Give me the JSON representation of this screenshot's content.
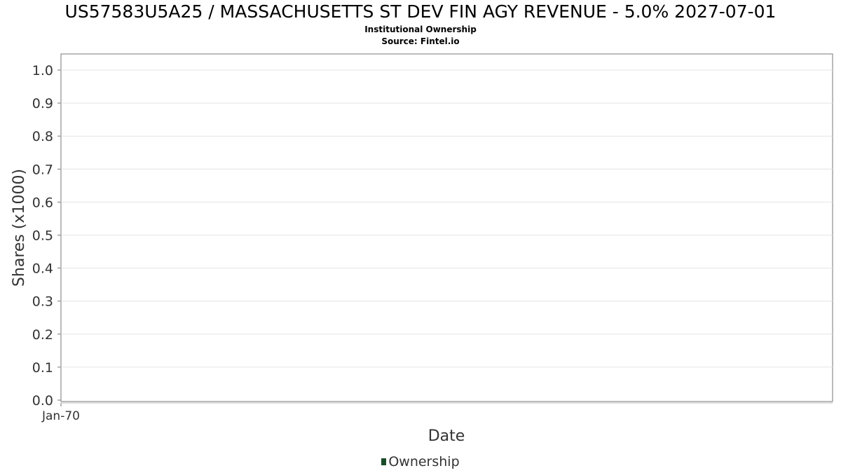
{
  "chart_data": {
    "type": "line",
    "title": "US57583U5A25 / MASSACHUSETTS ST DEV FIN AGY REVENUE - 5.0% 2027-07-01",
    "subtitle": "Institutional Ownership",
    "source": "Source: Fintel.io",
    "xlabel": "Date",
    "ylabel": "Shares (x1000)",
    "ylim": [
      0,
      1.0
    ],
    "yticks": [
      "0.0",
      "0.1",
      "0.2",
      "0.3",
      "0.4",
      "0.5",
      "0.6",
      "0.7",
      "0.8",
      "0.9",
      "1.0"
    ],
    "xticks": [
      "Jan-70"
    ],
    "grid": true,
    "legend_position": "bottom",
    "series": [
      {
        "name": "Ownership",
        "color": "#1b4d2b",
        "x": [],
        "y": []
      }
    ]
  }
}
